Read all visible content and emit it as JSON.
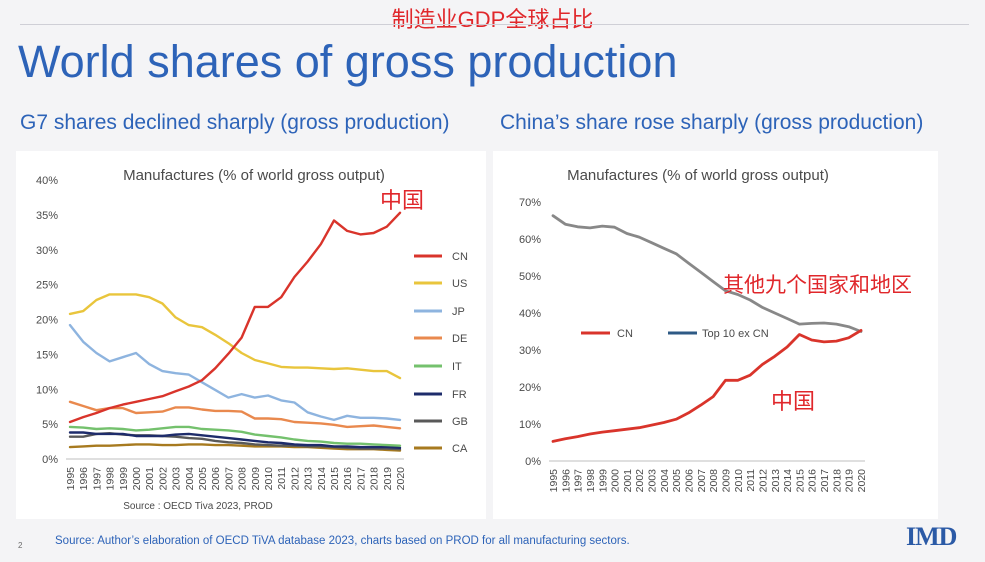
{
  "header": {
    "cn_title": "制造业GDP全球占比",
    "title": "World shares of gross production"
  },
  "subtitles": {
    "left": "G7 shares declined sharply (gross production)",
    "right": "China’s share rose sharply (gross production)"
  },
  "footer": {
    "source": "Source: Author’s elaboration of OECD   TiVA database 2023, charts based on PROD for all manufacturing sectors.",
    "page": "2",
    "logo": "IMD"
  },
  "colors": {
    "title": "#2d63b8",
    "annotation": "#e0272b",
    "CN": "#d9342b",
    "US": "#e9c53c",
    "JP": "#8eb4df",
    "DE": "#e9894e",
    "IT": "#74c16d",
    "FR": "#1e2c6b",
    "GB": "#595959",
    "CA": "#a77a1f",
    "Top 10 ex CN": "#2e5a85"
  },
  "chart_data": [
    {
      "type": "line",
      "title": "Manufactures (% of world gross output)",
      "source_note": "Source : OECD Tiva 2023, PROD",
      "annotation": "中国",
      "x": [
        1995,
        1996,
        1997,
        1998,
        1999,
        2000,
        2001,
        2002,
        2003,
        2004,
        2005,
        2006,
        2007,
        2008,
        2009,
        2010,
        2011,
        2012,
        2013,
        2014,
        2015,
        2016,
        2017,
        2018,
        2019,
        2020
      ],
      "x_labels": [
        "1995",
        "1996",
        "1997",
        "1998",
        "1999",
        "2000",
        "2001",
        "2002",
        "2003",
        "2004",
        "2005",
        "2006",
        "2007",
        "2008",
        "2009",
        "2010",
        "2011",
        "2012",
        "2013",
        "2014",
        "2015",
        "2016",
        "2017",
        "2018",
        "2019",
        "2020"
      ],
      "ylim": [
        0,
        40
      ],
      "y_ticks": [
        "0%",
        "5%",
        "10%",
        "15%",
        "20%",
        "25%",
        "30%",
        "35%",
        "40%"
      ],
      "legend_position": "right",
      "series": [
        {
          "name": "CN",
          "values": [
            5.3,
            6.0,
            6.6,
            7.3,
            7.8,
            8.2,
            8.6,
            9.0,
            9.7,
            10.4,
            11.3,
            13.0,
            15.1,
            17.4,
            21.8,
            21.8,
            23.2,
            26.1,
            28.3,
            30.8,
            34.2,
            32.7,
            32.2,
            32.4,
            33.3,
            35.3
          ]
        },
        {
          "name": "US",
          "values": [
            20.8,
            21.2,
            22.8,
            23.6,
            23.6,
            23.6,
            23.2,
            22.3,
            20.3,
            19.2,
            18.9,
            17.8,
            16.6,
            15.2,
            14.2,
            13.7,
            13.2,
            13.1,
            13.1,
            13.0,
            12.9,
            13.0,
            12.8,
            12.6,
            12.6,
            11.6
          ]
        },
        {
          "name": "JP",
          "values": [
            19.2,
            16.8,
            15.2,
            14.0,
            14.6,
            15.2,
            13.6,
            12.6,
            12.3,
            12.1,
            11.0,
            9.9,
            8.8,
            9.3,
            8.8,
            9.1,
            8.4,
            8.1,
            6.7,
            6.1,
            5.6,
            6.2,
            5.9,
            5.9,
            5.8,
            5.6
          ]
        },
        {
          "name": "DE",
          "values": [
            8.2,
            7.6,
            7.0,
            7.3,
            7.3,
            6.6,
            6.7,
            6.8,
            7.4,
            7.4,
            7.1,
            6.9,
            6.9,
            6.8,
            5.8,
            5.8,
            5.7,
            5.3,
            5.2,
            5.1,
            4.9,
            4.6,
            4.7,
            4.8,
            4.6,
            4.4
          ]
        },
        {
          "name": "IT",
          "values": [
            4.6,
            4.5,
            4.3,
            4.4,
            4.3,
            4.1,
            4.2,
            4.4,
            4.6,
            4.6,
            4.3,
            4.2,
            4.1,
            3.9,
            3.5,
            3.3,
            3.1,
            2.8,
            2.6,
            2.5,
            2.3,
            2.2,
            2.2,
            2.1,
            2.0,
            1.9
          ]
        },
        {
          "name": "FR",
          "values": [
            3.8,
            3.8,
            3.6,
            3.6,
            3.6,
            3.3,
            3.3,
            3.3,
            3.5,
            3.6,
            3.4,
            3.2,
            3.0,
            2.8,
            2.6,
            2.4,
            2.3,
            2.1,
            2.0,
            2.0,
            1.8,
            1.8,
            1.7,
            1.7,
            1.7,
            1.6
          ]
        },
        {
          "name": "GB",
          "values": [
            3.2,
            3.2,
            3.6,
            3.7,
            3.5,
            3.4,
            3.4,
            3.3,
            3.2,
            3.0,
            2.9,
            2.6,
            2.4,
            2.3,
            2.1,
            2.0,
            1.9,
            1.9,
            1.8,
            1.8,
            1.7,
            1.6,
            1.5,
            1.5,
            1.5,
            1.4
          ]
        },
        {
          "name": "CA",
          "values": [
            1.7,
            1.8,
            1.9,
            1.9,
            2.0,
            2.1,
            2.1,
            2.0,
            2.0,
            2.1,
            2.1,
            2.0,
            2.0,
            1.9,
            1.8,
            1.8,
            1.8,
            1.7,
            1.7,
            1.6,
            1.5,
            1.4,
            1.4,
            1.4,
            1.3,
            1.2
          ]
        }
      ]
    },
    {
      "type": "line",
      "title": "Manufactures (% of world gross output)",
      "annotations": {
        "top10": "其他九个国家和地区",
        "cn": "中国"
      },
      "x": [
        1995,
        1996,
        1997,
        1998,
        1999,
        2000,
        2001,
        2002,
        2003,
        2004,
        2005,
        2006,
        2007,
        2008,
        2009,
        2010,
        2011,
        2012,
        2013,
        2014,
        2015,
        2016,
        2017,
        2018,
        2019,
        2020
      ],
      "x_labels": [
        "1995",
        "1996",
        "1997",
        "1998",
        "1999",
        "2000",
        "2001",
        "2002",
        "2003",
        "2004",
        "2005",
        "2006",
        "2007",
        "2008",
        "2009",
        "2010",
        "2011",
        "2012",
        "2013",
        "2014",
        "2015",
        "2016",
        "2017",
        "2018",
        "2019",
        "2020"
      ],
      "ylim": [
        0,
        70
      ],
      "y_ticks": [
        "0%",
        "10%",
        "20%",
        "30%",
        "40%",
        "50%",
        "60%",
        "70%"
      ],
      "legend_position": "center",
      "series": [
        {
          "name": "CN",
          "values": [
            5.3,
            6.0,
            6.6,
            7.3,
            7.8,
            8.2,
            8.6,
            9.0,
            9.7,
            10.4,
            11.3,
            13.0,
            15.1,
            17.4,
            21.8,
            21.8,
            23.2,
            26.1,
            28.3,
            30.8,
            34.2,
            32.7,
            32.2,
            32.4,
            33.3,
            35.3
          ]
        },
        {
          "name": "Top  10 ex CN",
          "values": [
            66.3,
            64.0,
            63.3,
            63.0,
            63.5,
            63.2,
            61.5,
            60.5,
            59.0,
            57.5,
            56.0,
            53.5,
            51.0,
            48.5,
            46.0,
            45.0,
            43.5,
            41.5,
            40.0,
            38.5,
            37.0,
            37.2,
            37.3,
            37.0,
            36.3,
            35.0
          ]
        }
      ]
    }
  ]
}
